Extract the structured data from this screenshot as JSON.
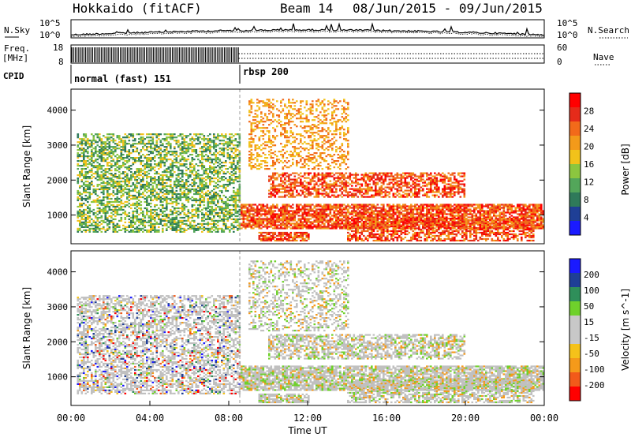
{
  "header": {
    "station": "Hokkaido (fitACF)",
    "beam": "Beam 14",
    "date_range": "08/Jun/2015 - 09/Jun/2015"
  },
  "colors": {
    "power_scale": [
      "#1a1aff",
      "#1f3f96",
      "#2f7a5a",
      "#53a65a",
      "#8cc63f",
      "#f2c21a",
      "#f39a1a",
      "#f26a1a",
      "#e52b1a",
      "#ff0000"
    ],
    "velocity_scale": [
      "#ff0000",
      "#f25a1a",
      "#f59a1a",
      "#f5c21a",
      "#c8c8c8",
      "#c8c8c8",
      "#6fd12b",
      "#2f8f5a",
      "#1f3f96",
      "#1a1aff"
    ],
    "ground_scatter": "#c0c0c0"
  },
  "chart_data": [
    {
      "type": "line",
      "panel": "noise",
      "left_label": "N.Sky",
      "right_label": "N.Search",
      "left_ticks": [
        "10^5",
        "10^0"
      ],
      "right_ticks": [
        "10^5",
        "10^0"
      ]
    },
    {
      "type": "line",
      "panel": "frequency",
      "left_label_line1": "Freq.",
      "left_label_line2": "[MHz]",
      "right_label": "Nave",
      "left_ticks": [
        "18",
        "8"
      ],
      "right_ticks": [
        "60",
        "0"
      ],
      "ylim": [
        8,
        18
      ],
      "modes": [
        {
          "name": "normal (fast) 151",
          "start_hour": 0,
          "end_hour": 8.5
        },
        {
          "name": "rbsp 200",
          "start_hour": 8.5,
          "end_hour": 24
        }
      ],
      "cpid_label": "CPID"
    },
    {
      "type": "heatmap",
      "panel": "power",
      "ylabel": "Slant Range [km]",
      "colorbar_label": "Power [dB]",
      "colorbar_ticks": [
        "28",
        "24",
        "20",
        "16",
        "12",
        "8",
        "4"
      ],
      "y_ticks": [
        "4000",
        "3000",
        "2000",
        "1000"
      ],
      "y_tick_values": [
        4000,
        3000,
        2000,
        1000
      ],
      "ylim": [
        180,
        4600
      ]
    },
    {
      "type": "heatmap",
      "panel": "velocity",
      "ylabel": "Slant Range [km]",
      "colorbar_label": "Velocity [m s^-1]",
      "colorbar_ticks": [
        "200",
        "100",
        "50",
        "15",
        "-15",
        "-50",
        "-100",
        "-200"
      ],
      "y_ticks": [
        "4000",
        "3000",
        "2000",
        "1000"
      ],
      "y_tick_values": [
        4000,
        3000,
        2000,
        1000
      ],
      "ylim": [
        180,
        4600
      ],
      "xlabel": "Time UT",
      "x_ticks": [
        "00:00",
        "04:00",
        "08:00",
        "12:00",
        "16:00",
        "20:00",
        "00:00"
      ],
      "x_tick_hours": [
        0,
        4,
        8,
        12,
        16,
        20,
        24
      ]
    }
  ]
}
